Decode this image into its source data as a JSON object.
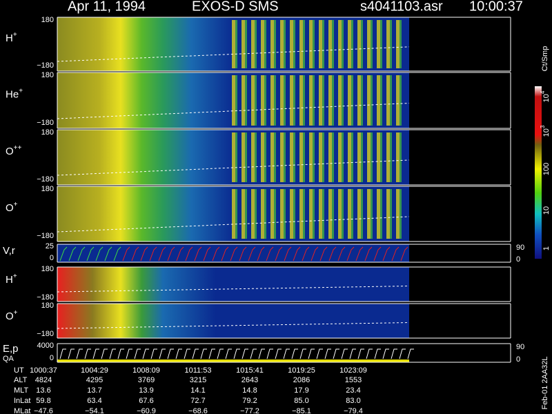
{
  "header": {
    "date": "Apr 11, 1994",
    "instrument": "EXOS-D SMS",
    "file": "s4041103.asr",
    "time": "10:00:37"
  },
  "main_panels": [
    {
      "label": "H",
      "sup": "+",
      "top": "180",
      "bottom": "−180"
    },
    {
      "label": "He",
      "sup": "+",
      "top": "180",
      "bottom": "−180"
    },
    {
      "label": "O",
      "sup": "++",
      "top": "180",
      "bottom": "−180"
    },
    {
      "label": "O",
      "sup": "+",
      "top": "180",
      "bottom": "−180"
    }
  ],
  "vr_panel": {
    "label": "V,r",
    "top": "25",
    "bottom": "0",
    "right_top": "90",
    "right_bottom": "0"
  },
  "low_panels": [
    {
      "label": "H",
      "sup": "+",
      "top": "180",
      "bottom": "−180"
    },
    {
      "label": "O",
      "sup": "+",
      "top": "180",
      "bottom": "−180"
    }
  ],
  "ep_panel": {
    "label": "E,p",
    "label2": "QA",
    "top": "4000",
    "bottom": "0",
    "right_top": "90",
    "right_bottom": "0"
  },
  "colorbar": {
    "unit": "Ct/Smp",
    "ticks": [
      {
        "base": "10",
        "exp": "4"
      },
      {
        "base": "10",
        "exp": "3"
      },
      {
        "base": "100"
      },
      {
        "base": "10"
      },
      {
        "base": "1"
      }
    ]
  },
  "ephemeris": {
    "rows": [
      [
        "UT",
        "1000:37",
        "1004:29",
        "1008:09",
        "1011:53",
        "1015:41",
        "1019:25",
        "1023:09"
      ],
      [
        "ALT",
        "4824",
        "4295",
        "3769",
        "3215",
        "2643",
        "2086",
        "1553"
      ],
      [
        "MLT",
        "13.6",
        "13.7",
        "13.9",
        "14.1",
        "14.8",
        "17.9",
        "23.4"
      ],
      [
        "InLat",
        "59.8",
        "63.4",
        "67.6",
        "72.7",
        "79.2",
        "85.0",
        "83.0"
      ],
      [
        "MLat",
        "−47.6",
        "−54.1",
        "−60.9",
        "−68.6",
        "−77.2",
        "−85.1",
        "−79.4"
      ]
    ]
  },
  "footer": "Feb-01 2AA32L"
}
